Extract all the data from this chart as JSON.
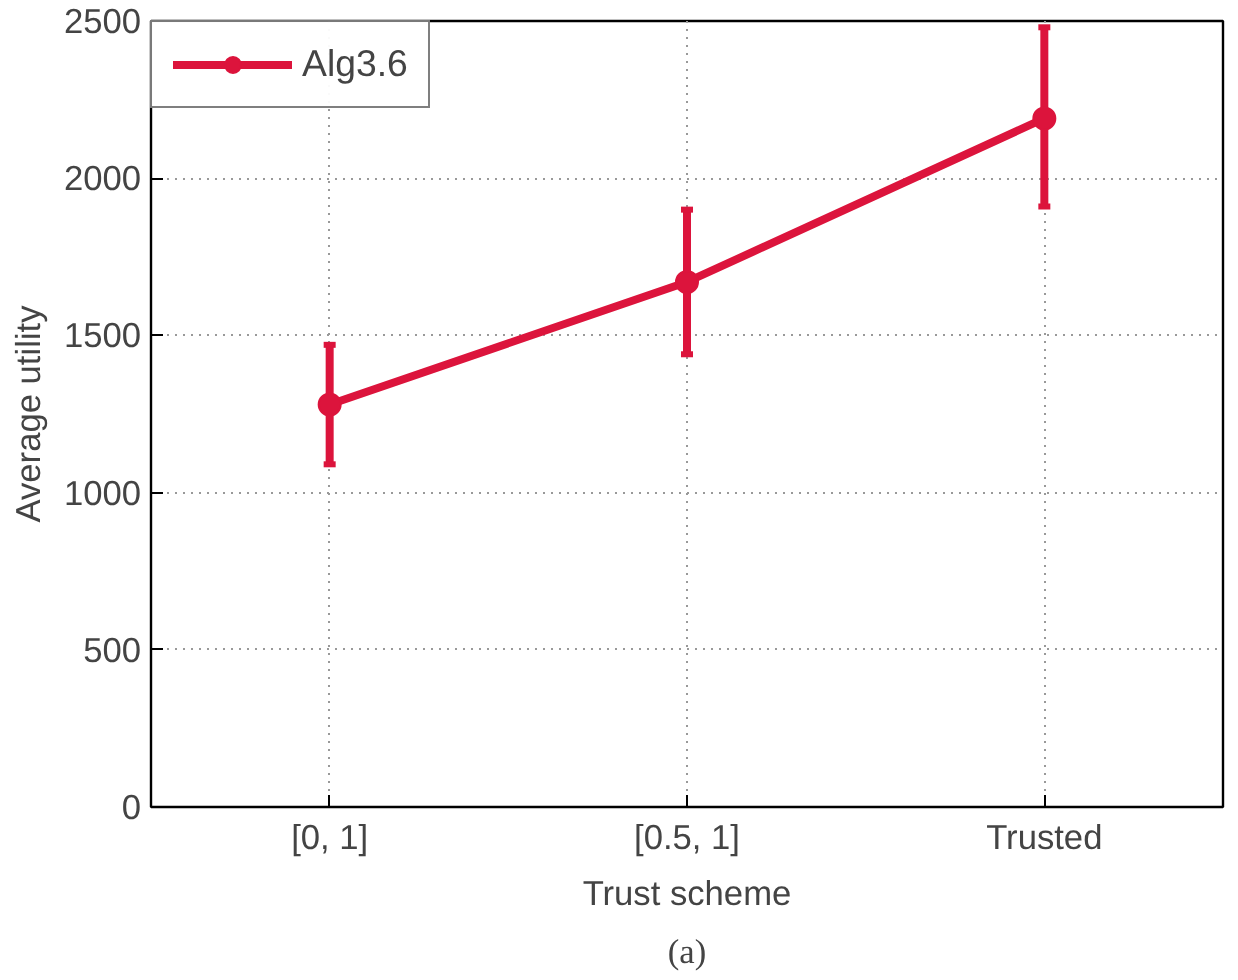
{
  "chart_data": {
    "type": "line",
    "xlabel": "Trust scheme",
    "ylabel": "Average utility",
    "categories": [
      "[0, 1]",
      "[0.5, 1]",
      "Trusted"
    ],
    "series": [
      {
        "name": "Alg3.6",
        "color": "#dc143c",
        "values": [
          1280,
          1670,
          2190
        ],
        "errors": [
          [
            1090,
            1470
          ],
          [
            1440,
            1900
          ],
          [
            1910,
            2480
          ]
        ]
      }
    ],
    "ylim": [
      0,
      2500
    ],
    "yticks": [
      0,
      500,
      1000,
      1500,
      2000,
      2500
    ],
    "grid": true,
    "legend": "top left",
    "marker": "circle",
    "line_style": "solid",
    "annotations": [
      "(a)"
    ]
  }
}
